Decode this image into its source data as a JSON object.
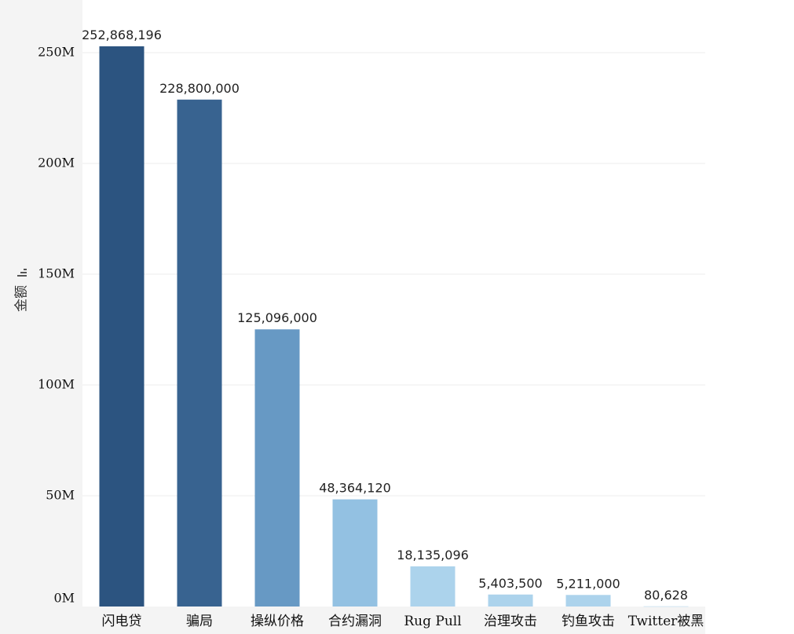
{
  "chart_data": {
    "type": "bar",
    "ylabel": "金额",
    "xlabel": "",
    "title": "",
    "ylim": [
      0,
      250000000
    ],
    "y_ticks": [
      0,
      50000000,
      100000000,
      150000000,
      200000000,
      250000000
    ],
    "y_tick_labels": [
      "0M",
      "50M",
      "100M",
      "150M",
      "200M",
      "250M"
    ],
    "grid": true,
    "categories": [
      "闪电贷",
      "骗局",
      "操纵价格",
      "合约漏洞",
      "Rug Pull",
      "治理攻击",
      "钓鱼攻击",
      "Twitter被黑"
    ],
    "values": [
      252868196,
      228800000,
      125096000,
      48364120,
      18135096,
      5403500,
      5211000,
      80628
    ],
    "value_labels": [
      "252,868,196",
      "228,800,000",
      "125,096,000",
      "48,364,120",
      "18,135,096",
      "5,403,500",
      "5,211,000",
      "80,628"
    ],
    "colors": [
      "#2c5480",
      "#386390",
      "#6799c4",
      "#93c1e2",
      "#acd3ec",
      "#acd3ec",
      "#acd3ec",
      "#acd3ec"
    ]
  },
  "axis": {
    "sort_icon": "sort-descending-icon"
  }
}
